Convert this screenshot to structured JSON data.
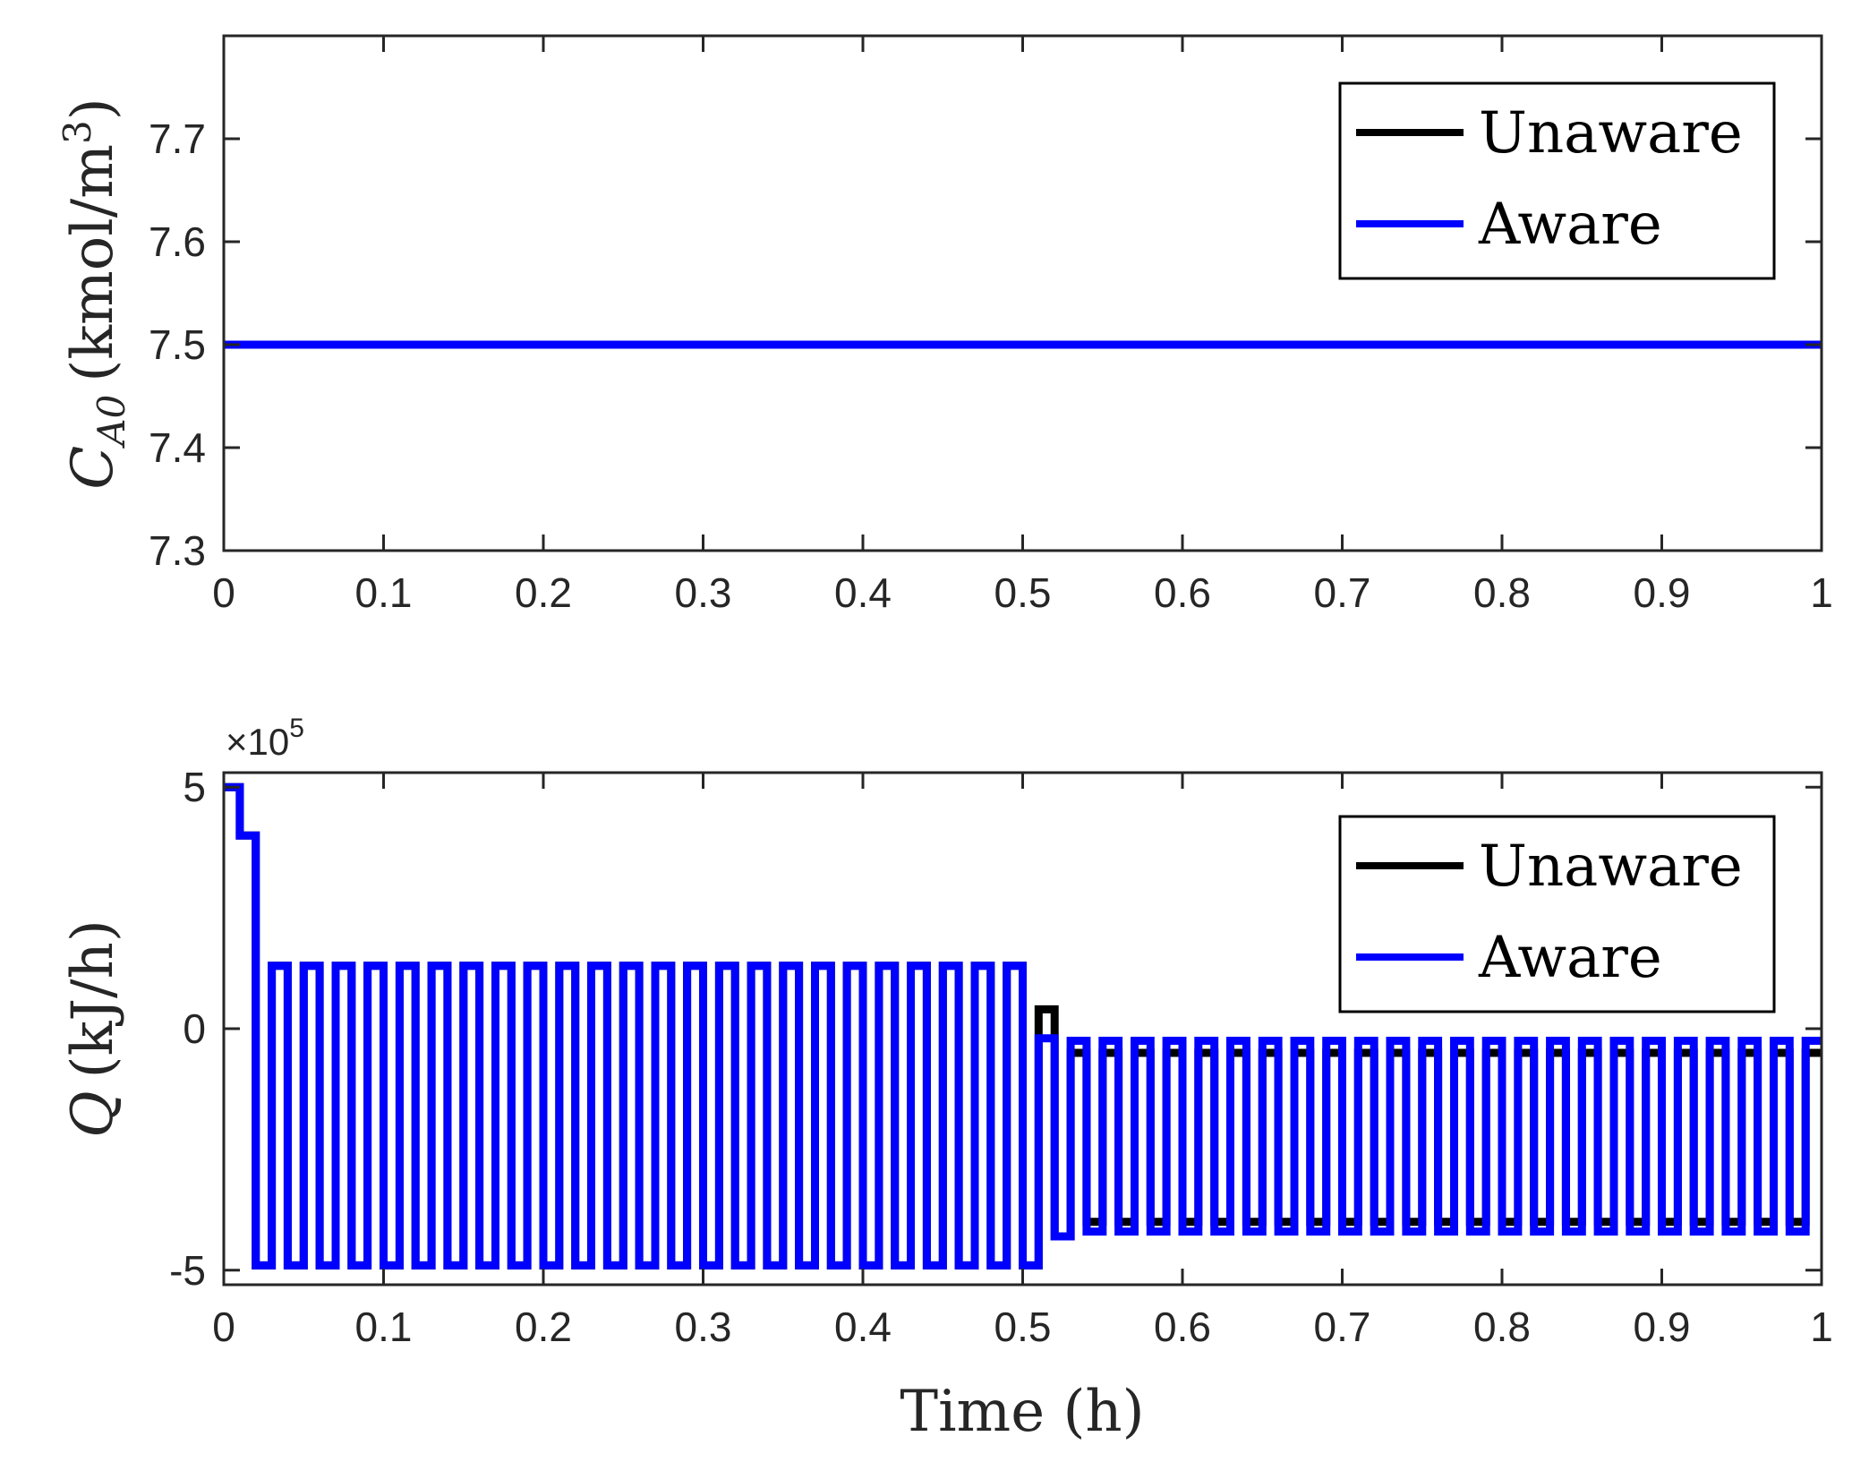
{
  "colors": {
    "unaware": "#000000",
    "aware": "#0000ff",
    "axis": "#262626"
  },
  "chart_data": [
    {
      "type": "line",
      "title": "",
      "xlabel": "",
      "ylabel_main": "C",
      "ylabel_sub": "A0",
      "ylabel_units": "(kmol/m",
      "ylabel_sup": "3",
      "ylabel_close": ")",
      "xlim": [
        0,
        1
      ],
      "ylim": [
        7.3,
        7.8
      ],
      "xticks": [
        0,
        0.1,
        0.2,
        0.3,
        0.4,
        0.5,
        0.6,
        0.7,
        0.8,
        0.9,
        1
      ],
      "xtick_labels": [
        "0",
        "0.1",
        "0.2",
        "0.3",
        "0.4",
        "0.5",
        "0.6",
        "0.7",
        "0.8",
        "0.9",
        "1"
      ],
      "yticks": [
        7.3,
        7.4,
        7.5,
        7.6,
        7.7
      ],
      "ytick_labels": [
        "7.3",
        "7.4",
        "7.5",
        "7.6",
        "7.7"
      ],
      "legend_position": "top-right",
      "series": [
        {
          "name": "Unaware",
          "color": "#000000",
          "x": [
            0,
            1
          ],
          "y": [
            7.5,
            7.5
          ]
        },
        {
          "name": "Aware",
          "color": "#0000ff",
          "x": [
            0,
            1
          ],
          "y": [
            7.5,
            7.5
          ]
        }
      ]
    },
    {
      "type": "line",
      "title": "",
      "xlabel": "Time (h)",
      "ylabel": "Q (kJ/h)",
      "ylabel_main": "Q",
      "ylabel_units": "(kJ/h)",
      "exponent_label": "×10",
      "exponent_power": "5",
      "xlim": [
        0,
        1
      ],
      "ylim": [
        -5.3,
        5.3
      ],
      "xticks": [
        0,
        0.1,
        0.2,
        0.3,
        0.4,
        0.5,
        0.6,
        0.7,
        0.8,
        0.9,
        1
      ],
      "xtick_labels": [
        "0",
        "0.1",
        "0.2",
        "0.3",
        "0.4",
        "0.5",
        "0.6",
        "0.7",
        "0.8",
        "0.9",
        "1"
      ],
      "yticks": [
        -5,
        0,
        5
      ],
      "ytick_labels": [
        "-5",
        "0",
        "5"
      ],
      "legend_position": "top-right",
      "sampling_period_h": 0.01,
      "series": [
        {
          "name": "Unaware",
          "color": "#000000",
          "phases": [
            {
              "from": 0.0,
              "to": 0.01,
              "values": [
                5.0
              ]
            },
            {
              "from": 0.01,
              "to": 0.02,
              "values": [
                4.0
              ]
            },
            {
              "from": 0.02,
              "to": 0.51,
              "values": [
                -4.9,
                1.3
              ]
            },
            {
              "from": 0.51,
              "to": 0.52,
              "values": [
                0.4
              ]
            },
            {
              "from": 0.52,
              "to": 0.53,
              "values": [
                -4.3
              ]
            },
            {
              "from": 0.53,
              "to": 1.0,
              "values": [
                -0.5,
                -4.0
              ]
            }
          ]
        },
        {
          "name": "Aware",
          "color": "#0000ff",
          "phases": [
            {
              "from": 0.0,
              "to": 0.01,
              "values": [
                5.0
              ]
            },
            {
              "from": 0.01,
              "to": 0.02,
              "values": [
                4.0
              ]
            },
            {
              "from": 0.02,
              "to": 0.51,
              "values": [
                -4.9,
                1.3
              ]
            },
            {
              "from": 0.51,
              "to": 0.52,
              "values": [
                -0.2
              ]
            },
            {
              "from": 0.52,
              "to": 0.53,
              "values": [
                -4.3
              ]
            },
            {
              "from": 0.53,
              "to": 1.0,
              "values": [
                -0.25,
                -4.2
              ]
            }
          ]
        }
      ]
    }
  ]
}
